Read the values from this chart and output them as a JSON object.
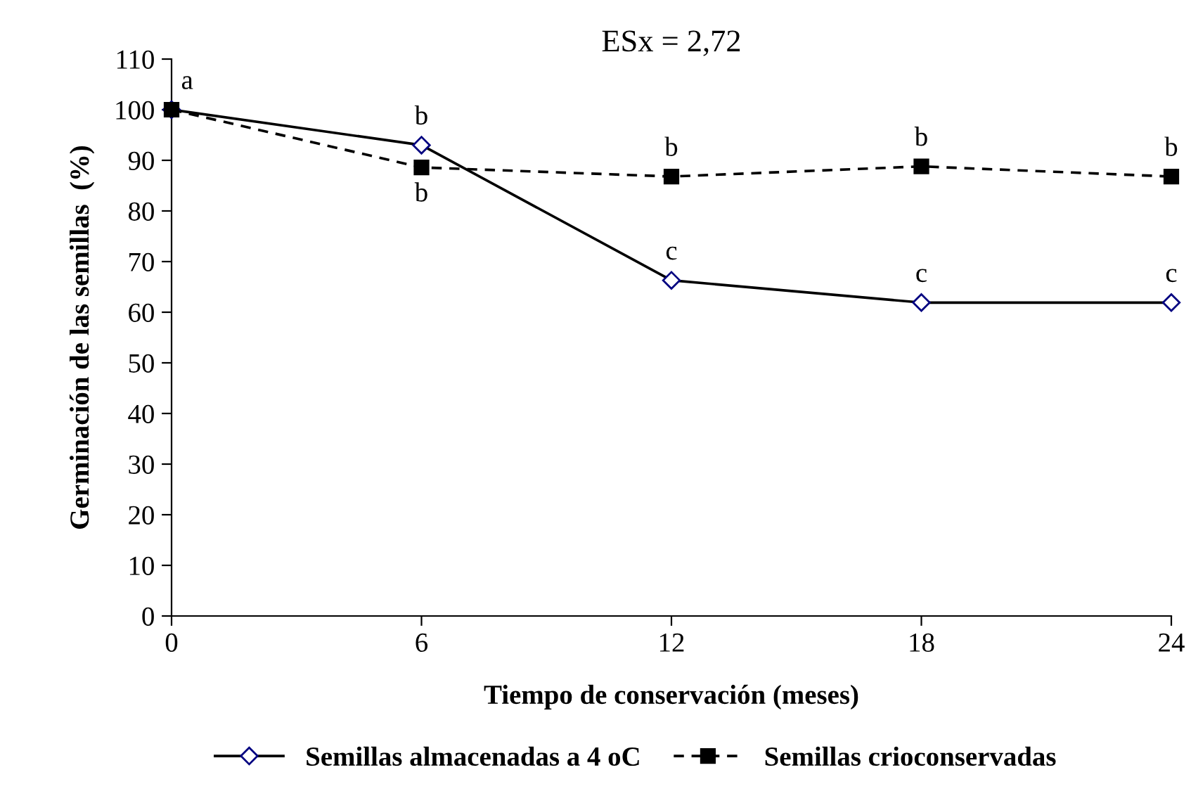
{
  "chart_data": {
    "type": "line",
    "title": "ESx = 2,72",
    "xlabel": "Tiempo de conservación (meses)",
    "ylabel": "Germinación de las semillas  (%)",
    "x": [
      0,
      6,
      12,
      18,
      24
    ],
    "xlim": [
      0,
      24
    ],
    "xticks": [
      0,
      6,
      12,
      18,
      24
    ],
    "ylim": [
      0,
      110
    ],
    "yticks": [
      0,
      10,
      20,
      30,
      40,
      50,
      60,
      70,
      80,
      90,
      100,
      110
    ],
    "grid": false,
    "legend": "bottom",
    "series": [
      {
        "name": "Semillas almacenadas a 4 oC",
        "color": "#000080",
        "marker": "diamond",
        "line_style": "solid",
        "values": [
          100,
          93,
          66.3,
          61.9,
          61.9
        ]
      },
      {
        "name": "Semillas crioconservadas",
        "color": "#000000",
        "marker": "square",
        "line_style": "dashed",
        "values": [
          100,
          88.6,
          86.8,
          88.8,
          86.8
        ]
      }
    ],
    "annotations": [
      {
        "text": "a",
        "x": 0,
        "y": 100
      },
      {
        "text": "b",
        "x": 6,
        "y": 93
      },
      {
        "text": "b",
        "x": 6,
        "y": 88.6
      },
      {
        "text": "b",
        "x": 12,
        "y": 86.8
      },
      {
        "text": "b",
        "x": 18,
        "y": 88.8
      },
      {
        "text": "b",
        "x": 24,
        "y": 86.8
      },
      {
        "text": "c",
        "x": 12,
        "y": 66.3
      },
      {
        "text": "c",
        "x": 18,
        "y": 61.9
      },
      {
        "text": "c",
        "x": 24,
        "y": 61.9
      }
    ]
  }
}
